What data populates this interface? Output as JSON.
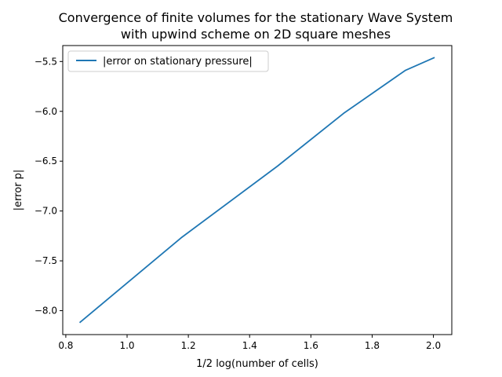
{
  "chart_data": {
    "type": "line",
    "title": [
      "Convergence of finite volumes for the stationary Wave System",
      "with upwind scheme on 2D square meshes"
    ],
    "xlabel": "1/2 log(number of cells)",
    "ylabel": "|error p|",
    "xlim": [
      0.79,
      2.06
    ],
    "ylim": [
      -8.24,
      -5.34
    ],
    "xticks": [
      0.8,
      1.0,
      1.2,
      1.4,
      1.6,
      1.8,
      2.0
    ],
    "xtick_labels": [
      "0.8",
      "1.0",
      "1.2",
      "1.4",
      "1.6",
      "1.8",
      "2.0"
    ],
    "yticks": [
      -8.0,
      -7.5,
      -7.0,
      -6.5,
      -6.0,
      -5.5
    ],
    "ytick_labels": [
      "−8.0",
      "−7.5",
      "−7.0",
      "−6.5",
      "−6.0",
      "−5.5"
    ],
    "grid": false,
    "legend_position": "upper left",
    "series": [
      {
        "name": "|error on stationary pressure|",
        "color": "#1f77b4",
        "x": [
          0.845,
          1.176,
          1.491,
          1.707,
          1.908,
          2.004
        ],
        "y": [
          -8.12,
          -7.27,
          -6.55,
          -6.02,
          -5.59,
          -5.46
        ]
      }
    ]
  }
}
